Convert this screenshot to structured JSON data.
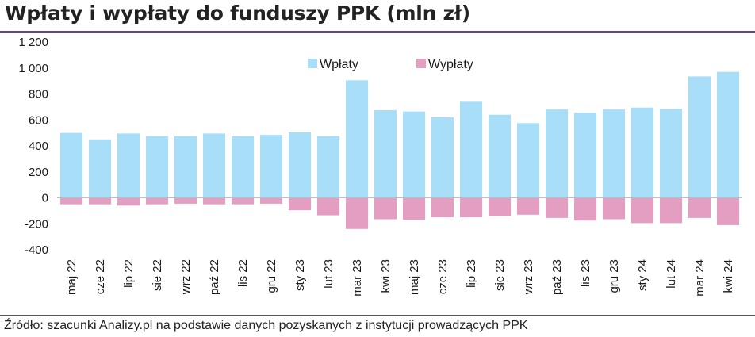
{
  "title": "Wpłaty i wypłaty do funduszy PPK (mln zł)",
  "source": "Źródło: szacunki Analizy.pl na podstawie danych pozyskanych z instytucji prowadzących PPK",
  "colors": {
    "wplaty": "#a8def7",
    "wyplaty": "#e49ec2",
    "title_rule": "#6a3d9a"
  },
  "chart_data": {
    "type": "bar",
    "title": "Wpłaty i wypłaty do funduszy PPK (mln zł)",
    "categories": [
      "maj 22",
      "cze 22",
      "lip 22",
      "sie 22",
      "wrz 22",
      "paź 22",
      "lis 22",
      "gru 22",
      "sty 23",
      "lut 23",
      "mar 23",
      "kwi 23",
      "maj 23",
      "cze 23",
      "lip 23",
      "sie 23",
      "wrz 23",
      "paź 23",
      "lis 23",
      "gru 23",
      "sty 24",
      "lut 24",
      "mar 24",
      "kwi 24"
    ],
    "series": [
      {
        "name": "Wpłaty",
        "color": "#a8def7",
        "values": [
          500,
          450,
          495,
          475,
          475,
          495,
          475,
          485,
          505,
          475,
          905,
          675,
          665,
          620,
          740,
          640,
          575,
          680,
          655,
          680,
          695,
          685,
          935,
          970
        ]
      },
      {
        "name": "Wypłaty",
        "color": "#e49ec2",
        "values": [
          -50,
          -50,
          -60,
          -50,
          -45,
          -50,
          -50,
          -45,
          -95,
          -135,
          -240,
          -165,
          -170,
          -150,
          -150,
          -140,
          -130,
          -155,
          -175,
          -165,
          -195,
          -195,
          -155,
          -210
        ]
      }
    ],
    "stacked": true,
    "ylim": [
      -400,
      1200
    ],
    "yticks": [
      -400,
      -200,
      0,
      200,
      400,
      600,
      800,
      1000,
      1200
    ],
    "ytick_labels": [
      "-400",
      "-200",
      "0",
      "200",
      "400",
      "600",
      "800",
      "1 000",
      "1 200"
    ],
    "grid": false,
    "legend": "top-center"
  }
}
